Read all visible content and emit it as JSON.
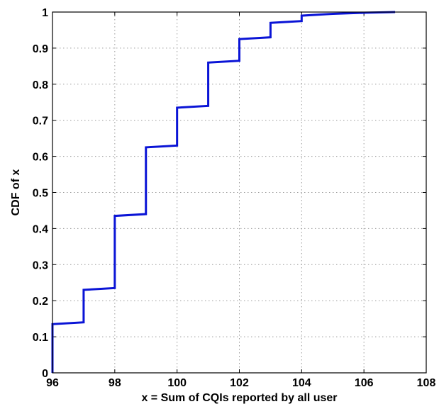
{
  "chart_data": {
    "type": "line",
    "title": "",
    "xlabel": "x = Sum of CQIs reported by all user",
    "ylabel": "CDF of x",
    "xlim": [
      96,
      108
    ],
    "ylim": [
      0,
      1
    ],
    "xticks": [
      96,
      98,
      100,
      102,
      104,
      106,
      108
    ],
    "yticks": [
      0,
      0.1,
      0.2,
      0.3,
      0.4,
      0.5,
      0.6,
      0.7,
      0.8,
      0.9,
      1
    ],
    "xtick_labels": [
      "96",
      "98",
      "100",
      "102",
      "104",
      "106",
      "108"
    ],
    "ytick_labels": [
      "0",
      "0.1",
      "0.2",
      "0.3",
      "0.4",
      "0.5",
      "0.6",
      "0.7",
      "0.8",
      "0.9",
      "1"
    ],
    "grid": true,
    "line_color": "#0a14d6",
    "series": [
      {
        "x": [
          96,
          96,
          97,
          97,
          98,
          98,
          99,
          99,
          100,
          100,
          101,
          101,
          102,
          102,
          103,
          103,
          104,
          104,
          105,
          106,
          107
        ],
        "y": [
          0,
          0.135,
          0.14,
          0.23,
          0.235,
          0.435,
          0.44,
          0.625,
          0.63,
          0.735,
          0.74,
          0.86,
          0.865,
          0.925,
          0.93,
          0.97,
          0.975,
          0.99,
          0.995,
          0.998,
          1
        ]
      }
    ]
  }
}
